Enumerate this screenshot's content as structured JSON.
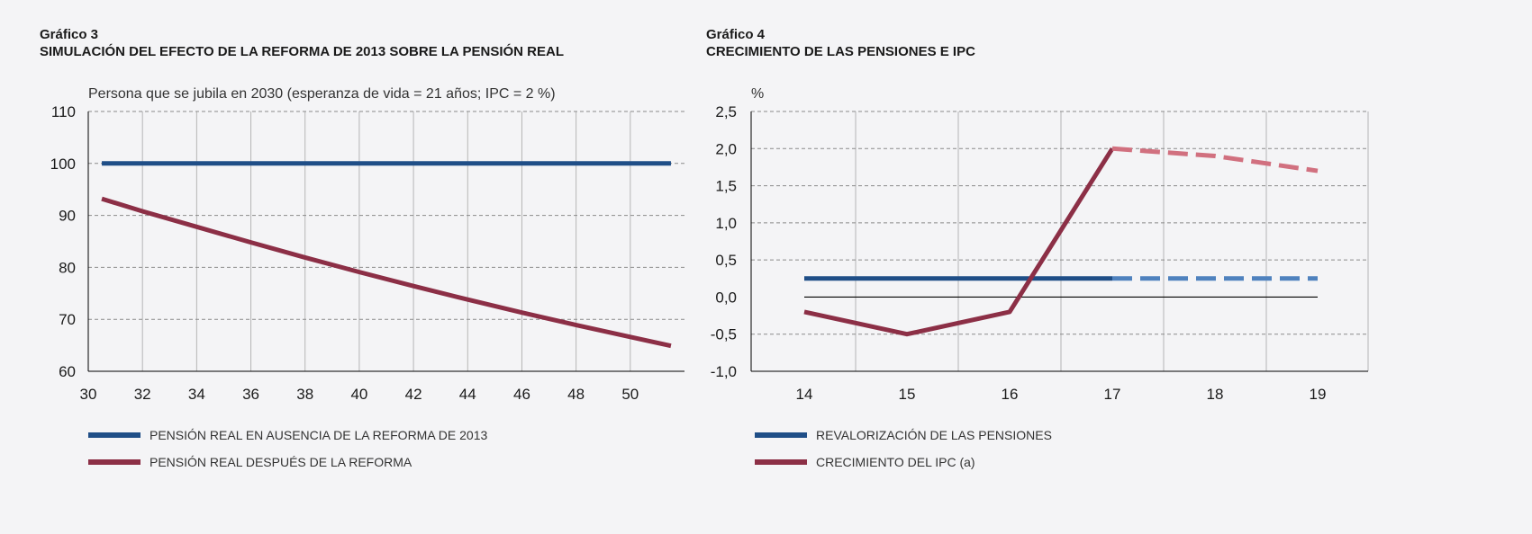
{
  "chart3": {
    "figure_number": "Gráfico 3",
    "title": "SIMULACIÓN DEL EFECTO DE LA REFORMA DE 2013 SOBRE LA PENSIÓN REAL"
  },
  "chart4": {
    "figure_number": "Gráfico 4",
    "title": "CRECIMIENTO DE LAS PENSIONES E IPC"
  },
  "chart_data": [
    {
      "type": "line",
      "subtitle": "Persona que se jubila en 2030 (esperanza de vida = 21 años; IPC = 2 %)",
      "xlim": [
        30,
        52
      ],
      "ylim": [
        60,
        110
      ],
      "xticks": [
        30,
        32,
        34,
        36,
        38,
        40,
        42,
        44,
        46,
        48,
        50
      ],
      "yticks": [
        60,
        70,
        80,
        90,
        100,
        110
      ],
      "grid": true,
      "legend_position": "bottom",
      "series": [
        {
          "name": "PENSIÓN REAL EN AUSENCIA DE LA REFORMA DE 2013",
          "color": "#1f4e87",
          "x": [
            30.5,
            51.5
          ],
          "y": [
            100,
            100
          ]
        },
        {
          "name": "PENSIÓN REAL DESPUÉS DE LA REFORMA",
          "color": "#8c2f46",
          "x": [
            30.5,
            32,
            34,
            36,
            38,
            40,
            42,
            44,
            46,
            48,
            50,
            51.5
          ],
          "y": [
            93.2,
            90.8,
            87.8,
            84.8,
            81.9,
            79.1,
            76.4,
            73.8,
            71.3,
            68.9,
            66.6,
            64.9
          ]
        }
      ]
    },
    {
      "type": "line",
      "ylabel": "%",
      "categories": [
        "14",
        "15",
        "16",
        "17",
        "18",
        "19"
      ],
      "ylim": [
        -1.0,
        2.5
      ],
      "yticks": [
        "-1,0",
        "-0,5",
        "0,0",
        "0,5",
        "1,0",
        "1,5",
        "2,0",
        "2,5"
      ],
      "grid": true,
      "legend_position": "bottom",
      "series": [
        {
          "name": "REVALORIZACIÓN DE LAS PENSIONES",
          "color": "#1f4e87",
          "projection_color": "#4f82be",
          "values": [
            0.25,
            0.25,
            0.25,
            0.25,
            0.25,
            0.25
          ],
          "projected_from": "17"
        },
        {
          "name": "CRECIMIENTO DEL IPC (a)",
          "color": "#8c2f46",
          "projection_color": "#d1707f",
          "values": [
            -0.2,
            -0.5,
            -0.2,
            2.0,
            1.9,
            1.7
          ],
          "projected_from": "17"
        }
      ]
    }
  ]
}
